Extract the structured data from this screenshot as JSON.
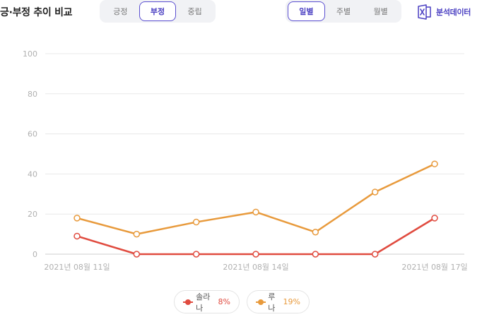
{
  "header": {
    "title": "긍·부정 추이 비교",
    "sentiment_tabs": [
      {
        "label": "긍정",
        "active": false
      },
      {
        "label": "부정",
        "active": true
      },
      {
        "label": "중립",
        "active": false
      }
    ],
    "period_tabs": [
      {
        "label": "일별",
        "active": true
      },
      {
        "label": "주별",
        "active": false
      },
      {
        "label": "월별",
        "active": false
      }
    ],
    "export_label": "분석데이터",
    "export_icon": "excel-icon",
    "accent_color": "#4a3fc2"
  },
  "chart_data": {
    "type": "line",
    "title": "",
    "xlabel": "",
    "ylabel": "",
    "x": [
      "2021년 08월 11일",
      "2021년 08월 12일",
      "2021년 08월 13일",
      "2021년 08월 14일",
      "2021년 08월 15일",
      "2021년 08월 16일",
      "2021년 08월 17일"
    ],
    "x_tick_labels": [
      "2021년 08월 11일",
      "2021년 08월 14일",
      "2021년 08월 17일"
    ],
    "ylim": [
      0,
      100
    ],
    "y_ticks": [
      0,
      20,
      40,
      60,
      80,
      100
    ],
    "grid": true,
    "legend_position": "bottom-center",
    "series": [
      {
        "name": "솔라나",
        "color": "#e04b3f",
        "values": [
          9,
          0,
          0,
          0,
          0,
          0,
          18
        ],
        "share": "8%"
      },
      {
        "name": "루나",
        "color": "#e89a3c",
        "values": [
          18,
          10,
          16,
          21,
          11,
          31,
          45
        ],
        "share": "19%"
      }
    ]
  }
}
